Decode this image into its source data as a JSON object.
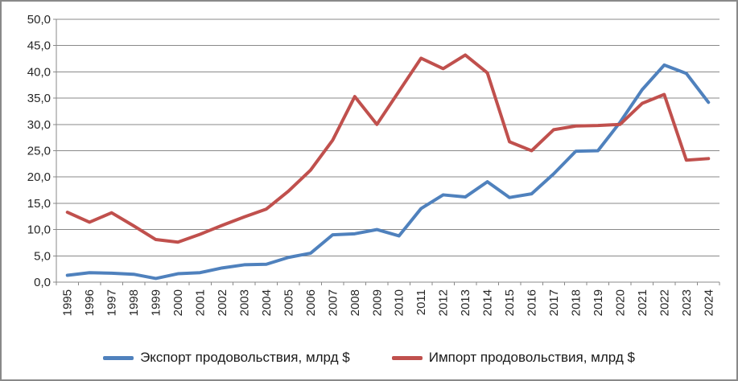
{
  "chart_data": {
    "type": "line",
    "title": "",
    "xlabel": "",
    "ylabel": "",
    "x": [
      "1995",
      "1996",
      "1997",
      "1998",
      "1999",
      "2000",
      "2001",
      "2002",
      "2003",
      "2004",
      "2005",
      "2006",
      "2007",
      "2008",
      "2009",
      "2010",
      "2011",
      "2012",
      "2013",
      "2014",
      "2015",
      "2016",
      "2017",
      "2018",
      "2019",
      "2020",
      "2021",
      "2022",
      "2023",
      "2024"
    ],
    "series": [
      {
        "name": "Экспорт продовольствия, млрд $",
        "color": "#4f81bd",
        "values": [
          1.3,
          1.8,
          1.7,
          1.5,
          0.7,
          1.6,
          1.8,
          2.7,
          3.3,
          3.4,
          4.7,
          5.5,
          9.0,
          9.2,
          10.0,
          8.8,
          14.0,
          16.6,
          16.2,
          19.1,
          16.1,
          16.8,
          20.6,
          24.9,
          25.0,
          30.4,
          36.6,
          41.3,
          39.7,
          34.2
        ]
      },
      {
        "name": "Импорт продовольствия, млрд $",
        "color": "#c0504d",
        "values": [
          13.3,
          11.4,
          13.2,
          10.7,
          8.1,
          7.6,
          9.1,
          10.8,
          12.4,
          13.9,
          17.3,
          21.3,
          27.0,
          35.3,
          30.0,
          36.3,
          42.6,
          40.6,
          43.2,
          39.8,
          26.7,
          25.0,
          29.0,
          29.7,
          29.8,
          30.0,
          34.0,
          35.7,
          23.2,
          23.5
        ]
      }
    ],
    "ylim": [
      0,
      50
    ],
    "y_tick_step": 5,
    "y_tick_labels": [
      "0,0",
      "5,0",
      "10,0",
      "15,0",
      "20,0",
      "25,0",
      "30,0",
      "35,0",
      "40,0",
      "45,0",
      "50,0"
    ],
    "grid": true,
    "legend_position": "bottom",
    "x_label_rotation_deg": 90,
    "grid_color": "#898989",
    "axis_color": "#898989"
  },
  "legend": {
    "items": [
      {
        "label": "Экспорт продовольствия, млрд $",
        "color": "#4f81bd"
      },
      {
        "label": "Импорт продовольствия, млрд $",
        "color": "#c0504d"
      }
    ]
  }
}
